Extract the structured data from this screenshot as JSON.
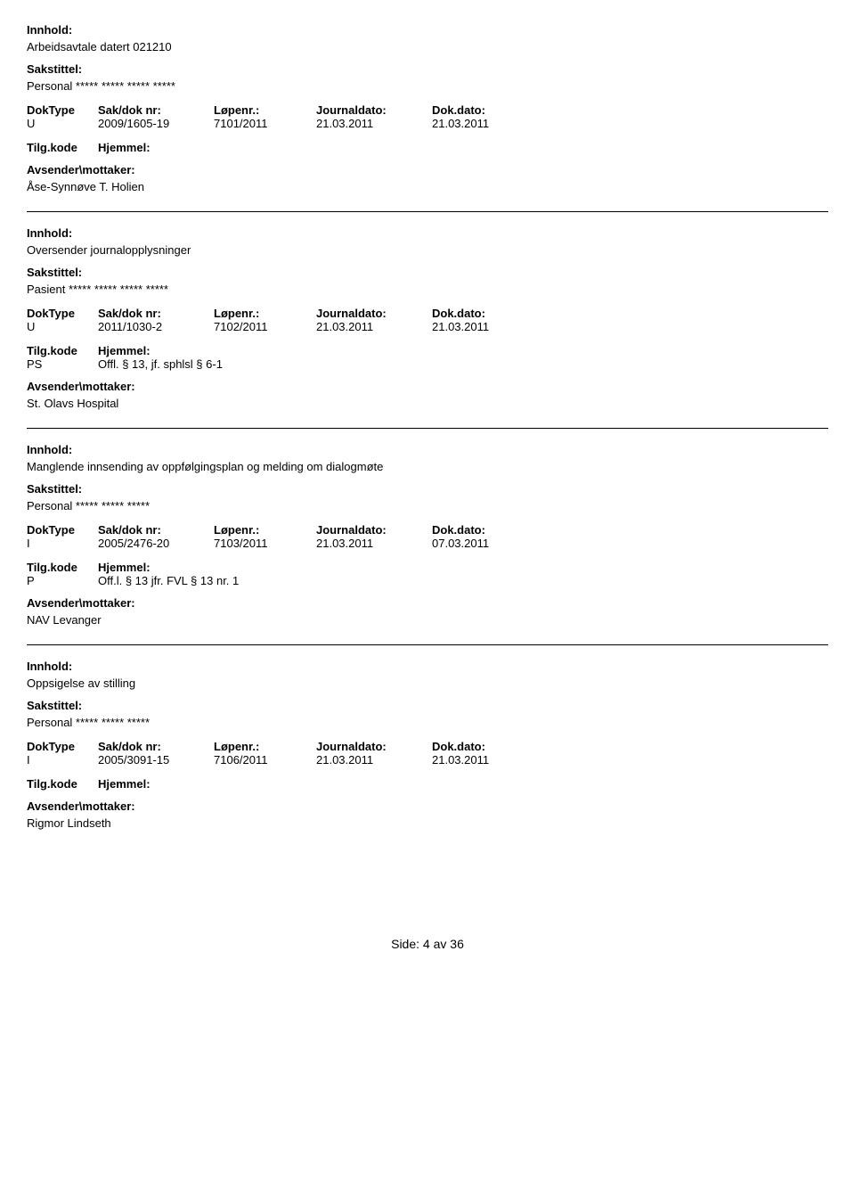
{
  "labels": {
    "innhold": "Innhold:",
    "sakstittel": "Sakstittel:",
    "doktype": "DokType",
    "sakdoknr": "Sak/dok nr:",
    "lopenr": "Løpenr.:",
    "journaldato": "Journaldato:",
    "dokdato": "Dok.dato:",
    "tilgkode": "Tilg.kode",
    "hjemmel": "Hjemmel:",
    "avsender": "Avsender\\mottaker:"
  },
  "entries": [
    {
      "innhold": "Arbeidsavtale datert 021210",
      "sakstittel": "Personal ***** ***** ***** *****",
      "doktype": "U",
      "sakdoknr": "2009/1605-19",
      "lopenr": "7101/2011",
      "journaldato": "21.03.2011",
      "dokdato": "21.03.2011",
      "tilgkode": "",
      "hjemmel": "",
      "avsender": "Åse-Synnøve T. Holien"
    },
    {
      "innhold": "Oversender journalopplysninger",
      "sakstittel": "Pasient ***** ***** ***** *****",
      "doktype": "U",
      "sakdoknr": "2011/1030-2",
      "lopenr": "7102/2011",
      "journaldato": "21.03.2011",
      "dokdato": "21.03.2011",
      "tilgkode": "PS",
      "hjemmel": "Offl. § 13, jf. sphlsl § 6-1",
      "avsender": "St. Olavs Hospital"
    },
    {
      "innhold": "Manglende innsending av oppfølgingsplan og melding om dialogmøte",
      "sakstittel": "Personal ***** ***** *****",
      "doktype": "I",
      "sakdoknr": "2005/2476-20",
      "lopenr": "7103/2011",
      "journaldato": "21.03.2011",
      "dokdato": "07.03.2011",
      "tilgkode": "P",
      "hjemmel": "Off.l. § 13 jfr. FVL § 13 nr. 1",
      "avsender": "NAV Levanger"
    },
    {
      "innhold": "Oppsigelse av stilling",
      "sakstittel": "Personal ***** ***** *****",
      "doktype": "I",
      "sakdoknr": "2005/3091-15",
      "lopenr": "7106/2011",
      "journaldato": "21.03.2011",
      "dokdato": "21.03.2011",
      "tilgkode": "",
      "hjemmel": "",
      "avsender": "Rigmor Lindseth"
    }
  ],
  "footer": {
    "prefix": "Side:",
    "page": "4",
    "sep": "av",
    "total": "36"
  }
}
